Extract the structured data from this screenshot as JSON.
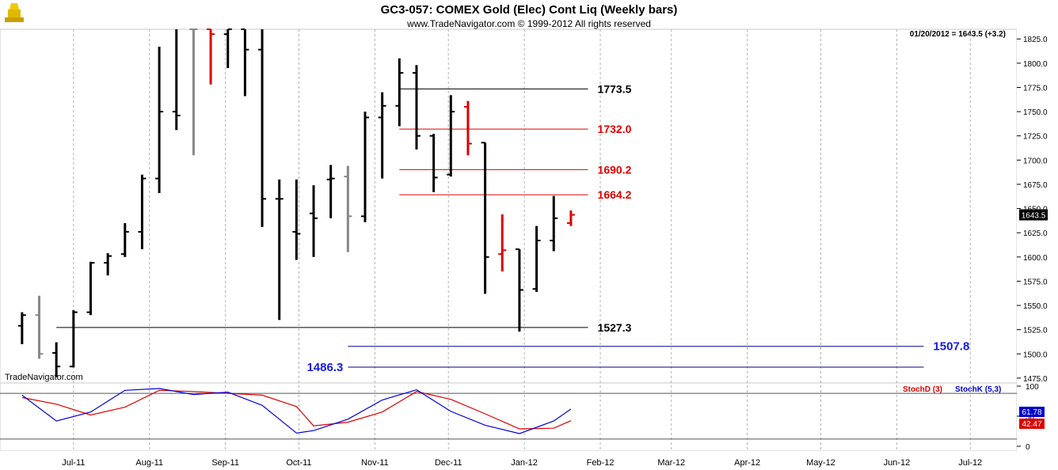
{
  "header": {
    "title": "GC3-057:  COMEX Gold (Elec) Cont Liq  (Weekly bars)",
    "copyright": "www.TradeNavigator.com © 1999-2012 All rights reserved",
    "quote": "01/20/2012 = 1643.5 (+3.2)",
    "watermark": "TradeNavigator.com",
    "last_price_box": "1643.5"
  },
  "colors": {
    "up_bar": "#000000",
    "down_bar": "#dd0000",
    "gray_bar": "#888888",
    "green_tick": "#00cc00",
    "stoch_d": "#dd0000",
    "stoch_k": "#0000dd",
    "level_red": "#dd0000",
    "level_black": "#000000",
    "level_blue": "#000088"
  },
  "chart_data": [
    {
      "type": "ohlc",
      "title": "GC3-057:  COMEX Gold (Elec) Cont Liq  (Weekly bars)",
      "ylim": [
        1470,
        1835
      ],
      "y_ticks": [
        1475,
        1500,
        1525,
        1550,
        1575,
        1600,
        1625,
        1650,
        1675,
        1700,
        1725,
        1750,
        1775,
        1800,
        1825
      ],
      "x_months": [
        "Jul-11",
        "Aug-11",
        "Sep-11",
        "Oct-11",
        "Nov-11",
        "Dec-11",
        "Jan-12",
        "Feb-12",
        "Mar-12",
        "Apr-12",
        "May-12",
        "Jun-12",
        "Jul-12"
      ],
      "x_range": [
        "2011-06-01",
        "2012-07-20"
      ],
      "grid": "vertical-dashed",
      "bars": [
        {
          "date": "2011-06-10",
          "o": 1529,
          "h": 1543,
          "l": 1510,
          "c": 1540,
          "color": "black"
        },
        {
          "date": "2011-06-17",
          "o": 1540,
          "h": 1560,
          "l": 1495,
          "c": 1500,
          "color": "gray"
        },
        {
          "date": "2011-06-24",
          "o": 1501,
          "h": 1512,
          "l": 1476,
          "c": 1487,
          "color": "black"
        },
        {
          "date": "2011-07-01",
          "o": 1487,
          "h": 1545,
          "l": 1486,
          "c": 1543,
          "color": "black"
        },
        {
          "date": "2011-07-08",
          "o": 1543,
          "h": 1595,
          "l": 1540,
          "c": 1594,
          "color": "black"
        },
        {
          "date": "2011-07-15",
          "o": 1594,
          "h": 1604,
          "l": 1581,
          "c": 1601,
          "color": "black"
        },
        {
          "date": "2011-07-22",
          "o": 1603,
          "h": 1635,
          "l": 1600,
          "c": 1626,
          "color": "black"
        },
        {
          "date": "2011-07-29",
          "o": 1626,
          "h": 1685,
          "l": 1608,
          "c": 1681,
          "color": "black"
        },
        {
          "date": "2011-08-05",
          "o": 1681,
          "h": 1817,
          "l": 1666,
          "c": 1750,
          "color": "black"
        },
        {
          "date": "2011-08-12",
          "o": 1750,
          "h": 1835,
          "l": 1731,
          "c": 1746,
          "color": "black"
        },
        {
          "date": "2011-08-19",
          "o": 1835,
          "h": 1835,
          "l": 1705,
          "c": 1835,
          "color": "gray"
        },
        {
          "date": "2011-08-26",
          "o": 1835,
          "h": 1835,
          "l": 1778,
          "c": 1830,
          "color": "red"
        },
        {
          "date": "2011-09-02",
          "o": 1830,
          "h": 1835,
          "l": 1795,
          "c": 1835,
          "color": "black"
        },
        {
          "date": "2011-09-09",
          "o": 1835,
          "h": 1835,
          "l": 1766,
          "c": 1814,
          "color": "black"
        },
        {
          "date": "2011-09-16",
          "o": 1814,
          "h": 1835,
          "l": 1631,
          "c": 1660,
          "color": "black"
        },
        {
          "date": "2011-09-23",
          "o": 1660,
          "h": 1680,
          "l": 1535,
          "c": 1660,
          "color": "black"
        },
        {
          "date": "2011-09-30",
          "o": 1626,
          "h": 1680,
          "l": 1597,
          "c": 1624,
          "color": "black"
        },
        {
          "date": "2011-10-07",
          "o": 1645,
          "h": 1674,
          "l": 1600,
          "c": 1640,
          "color": "black"
        },
        {
          "date": "2011-10-14",
          "o": 1680,
          "h": 1695,
          "l": 1640,
          "c": 1681,
          "color": "black"
        },
        {
          "date": "2011-10-21",
          "o": 1683,
          "h": 1694,
          "l": 1605,
          "c": 1642,
          "color": "gray"
        },
        {
          "date": "2011-10-28",
          "o": 1642,
          "h": 1750,
          "l": 1636,
          "c": 1744,
          "color": "black"
        },
        {
          "date": "2011-11-04",
          "o": 1744,
          "h": 1770,
          "l": 1681,
          "c": 1756,
          "color": "black"
        },
        {
          "date": "2011-11-11",
          "o": 1756,
          "h": 1805,
          "l": 1735,
          "c": 1790,
          "color": "black"
        },
        {
          "date": "2011-11-18",
          "o": 1790,
          "h": 1798,
          "l": 1711,
          "c": 1725,
          "color": "black"
        },
        {
          "date": "2011-11-25",
          "o": 1725,
          "h": 1727,
          "l": 1667,
          "c": 1682,
          "color": "black"
        },
        {
          "date": "2011-12-02",
          "o": 1685,
          "h": 1767,
          "l": 1683,
          "c": 1750,
          "color": "black"
        },
        {
          "date": "2011-12-09",
          "o": 1755,
          "h": 1761,
          "l": 1705,
          "c": 1717,
          "color": "red"
        },
        {
          "date": "2011-12-16",
          "o": 1718,
          "h": 1718,
          "l": 1562,
          "c": 1600,
          "color": "black"
        },
        {
          "date": "2011-12-23",
          "o": 1603,
          "h": 1644,
          "l": 1585,
          "c": 1607,
          "color": "red"
        },
        {
          "date": "2011-12-30",
          "o": 1608,
          "h": 1608,
          "l": 1523,
          "c": 1566,
          "color": "black"
        },
        {
          "date": "2012-01-06",
          "o": 1567,
          "h": 1632,
          "l": 1564,
          "c": 1617,
          "color": "black"
        },
        {
          "date": "2012-01-13",
          "o": 1617,
          "h": 1663,
          "l": 1606,
          "c": 1640,
          "color": "black"
        },
        {
          "date": "2012-01-20",
          "o": 1635,
          "h": 1648,
          "l": 1632,
          "c": 1643.5,
          "color": "red"
        }
      ],
      "levels": [
        {
          "label": "1773.5",
          "value": 1773.5,
          "color": "black",
          "from": "2011-11-11",
          "to": "2012-01-27"
        },
        {
          "label": "1732.0",
          "value": 1732.0,
          "color": "red",
          "from": "2011-11-11",
          "to": "2012-01-27"
        },
        {
          "label": "1690.2",
          "value": 1690.2,
          "color": "red",
          "from": "2011-11-11",
          "to": "2012-01-27"
        },
        {
          "label": "1664.2",
          "value": 1664.2,
          "color": "red",
          "from": "2011-11-11",
          "to": "2012-01-27"
        },
        {
          "label": "1527.3",
          "value": 1527.3,
          "color": "black",
          "from": "2011-06-24",
          "to": "2012-01-27"
        },
        {
          "label": "1507.8",
          "value": 1507.8,
          "color": "blue",
          "from": "2011-10-21",
          "to": "2012-06-12"
        },
        {
          "label": "1486.3",
          "value": 1486.3,
          "color": "blue",
          "from": "2011-10-21",
          "to": "2012-06-12"
        }
      ]
    },
    {
      "type": "line",
      "title": "Stochastic",
      "ylim": [
        0,
        100
      ],
      "y_ticks": [
        0,
        50,
        100
      ],
      "reference_lines": [
        88,
        12
      ],
      "series": [
        {
          "name": "StochD (3)",
          "color": "red",
          "values": [
            {
              "date": "2011-06-10",
              "y": 81
            },
            {
              "date": "2011-06-24",
              "y": 70
            },
            {
              "date": "2011-07-08",
              "y": 52
            },
            {
              "date": "2011-07-22",
              "y": 65
            },
            {
              "date": "2011-08-05",
              "y": 93
            },
            {
              "date": "2011-08-19",
              "y": 91
            },
            {
              "date": "2011-09-02",
              "y": 88
            },
            {
              "date": "2011-09-16",
              "y": 85
            },
            {
              "date": "2011-09-30",
              "y": 66
            },
            {
              "date": "2011-10-07",
              "y": 34
            },
            {
              "date": "2011-10-21",
              "y": 40
            },
            {
              "date": "2011-11-04",
              "y": 57
            },
            {
              "date": "2011-11-18",
              "y": 91
            },
            {
              "date": "2011-12-02",
              "y": 78
            },
            {
              "date": "2011-12-16",
              "y": 54
            },
            {
              "date": "2011-12-30",
              "y": 29
            },
            {
              "date": "2012-01-13",
              "y": 30
            },
            {
              "date": "2012-01-20",
              "y": 42.47
            }
          ]
        },
        {
          "name": "StochK (5,3)",
          "color": "blue",
          "values": [
            {
              "date": "2011-06-10",
              "y": 85
            },
            {
              "date": "2011-06-24",
              "y": 42
            },
            {
              "date": "2011-07-08",
              "y": 57
            },
            {
              "date": "2011-07-22",
              "y": 93
            },
            {
              "date": "2011-08-05",
              "y": 96
            },
            {
              "date": "2011-08-19",
              "y": 86
            },
            {
              "date": "2011-09-02",
              "y": 90
            },
            {
              "date": "2011-09-16",
              "y": 68
            },
            {
              "date": "2011-09-30",
              "y": 22
            },
            {
              "date": "2011-10-07",
              "y": 26
            },
            {
              "date": "2011-10-21",
              "y": 45
            },
            {
              "date": "2011-11-04",
              "y": 77
            },
            {
              "date": "2011-11-18",
              "y": 94
            },
            {
              "date": "2011-12-02",
              "y": 58
            },
            {
              "date": "2011-12-16",
              "y": 35
            },
            {
              "date": "2011-12-30",
              "y": 21
            },
            {
              "date": "2012-01-13",
              "y": 42
            },
            {
              "date": "2012-01-20",
              "y": 61.78
            }
          ]
        }
      ],
      "last_values": [
        "61.78",
        "42.47"
      ]
    }
  ]
}
